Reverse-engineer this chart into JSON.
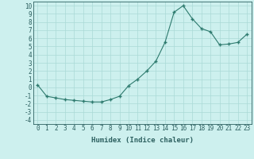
{
  "x": [
    0,
    1,
    2,
    3,
    4,
    5,
    6,
    7,
    8,
    9,
    10,
    11,
    12,
    13,
    14,
    15,
    16,
    17,
    18,
    19,
    20,
    21,
    22,
    23
  ],
  "y": [
    0.3,
    -1.1,
    -1.3,
    -1.5,
    -1.6,
    -1.7,
    -1.8,
    -1.8,
    -1.5,
    -1.1,
    0.2,
    1.0,
    2.0,
    3.2,
    5.5,
    9.2,
    10.0,
    8.4,
    7.2,
    6.8,
    5.2,
    5.3,
    5.5,
    6.5
  ],
  "line_color": "#2d7a6e",
  "marker": "+",
  "marker_size": 3.5,
  "marker_lw": 1.0,
  "line_width": 0.8,
  "bg_color": "#cdf0ee",
  "grid_color": "#aadad6",
  "xlabel": "Humidex (Indice chaleur)",
  "xlim": [
    -0.5,
    23.5
  ],
  "ylim": [
    -4.5,
    10.5
  ],
  "yticks": [
    -4,
    -3,
    -2,
    -1,
    0,
    1,
    2,
    3,
    4,
    5,
    6,
    7,
    8,
    9,
    10
  ],
  "xticks": [
    0,
    1,
    2,
    3,
    4,
    5,
    6,
    7,
    8,
    9,
    10,
    11,
    12,
    13,
    14,
    15,
    16,
    17,
    18,
    19,
    20,
    21,
    22,
    23
  ],
  "font_color": "#2d6060",
  "tick_font_size": 5.5,
  "xlabel_font_size": 6.5
}
